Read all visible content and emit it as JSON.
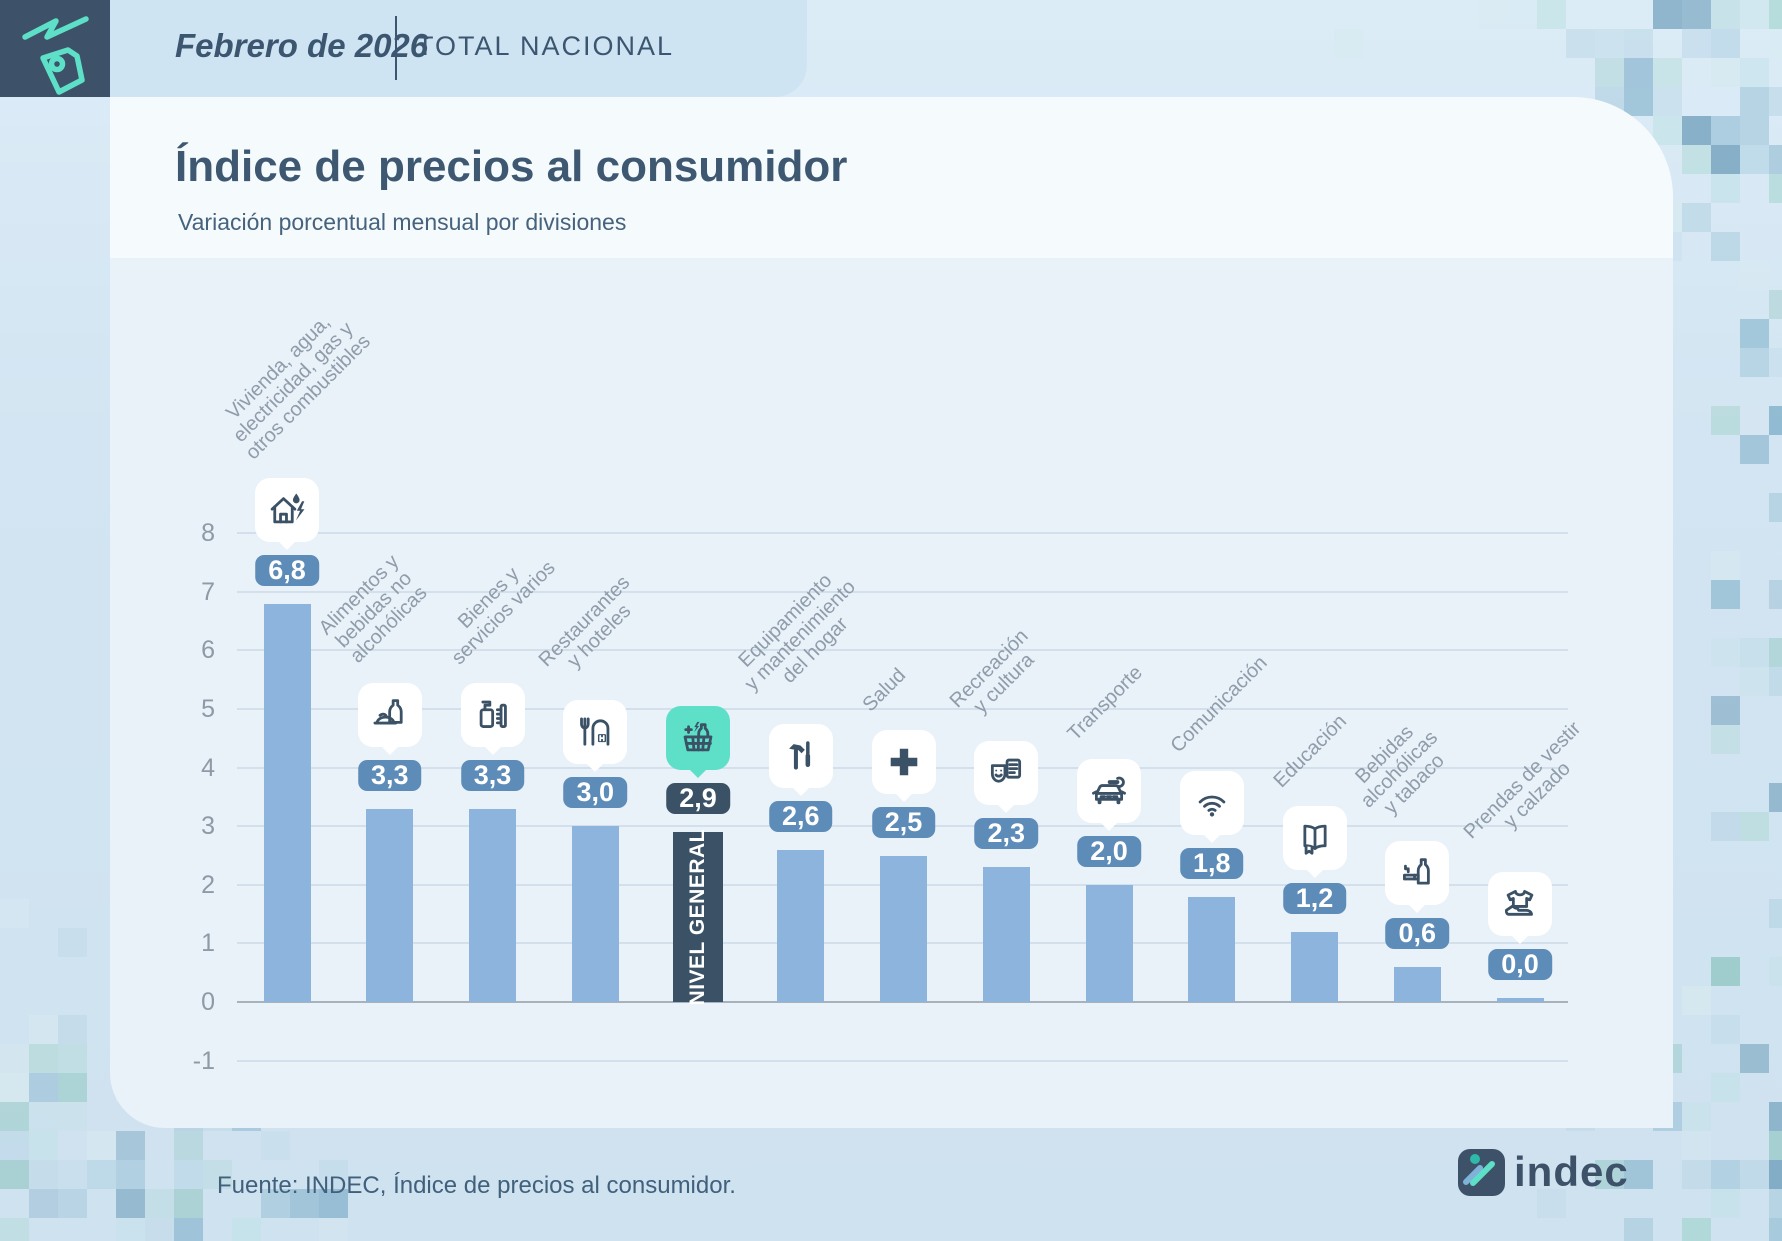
{
  "header": {
    "period": "Febrero de 2026",
    "scope": "TOTAL NACIONAL"
  },
  "title": "Índice de precios al consumidor",
  "subtitle": "Variación porcentual mensual por divisiones",
  "footer": {
    "source": "Fuente: INDEC, Índice de precios al consumidor.",
    "brand": "indec"
  },
  "colors": {
    "navy": "#3a5166",
    "accent_teal": "#5ee0c8",
    "bar_blue": "#8cb4dd",
    "badge_blue": "#5e8cb9",
    "band_blue": "#cfe4f3",
    "panel_blue": "#e9f1f9",
    "label_gray": "#8f9caa"
  },
  "chart_data": {
    "type": "bar",
    "title": "Índice de precios al consumidor",
    "subtitle": "Variación porcentual mensual por divisiones",
    "xlabel": "",
    "ylabel": "",
    "ylim": [
      -1,
      8
    ],
    "yticks": [
      8,
      7,
      6,
      5,
      4,
      3,
      2,
      1,
      0,
      -1
    ],
    "grid": true,
    "legend": "none",
    "highlight_category": "NIVEL GENERAL",
    "categories": [
      {
        "label": "Vivienda, agua,\nelectricidad, gas y\notros combustibles",
        "value": 6.8,
        "value_label": "6,8",
        "icon": "housing-energy-icon",
        "highlight": false
      },
      {
        "label": "Alimentos y\nbebidas no\nalcohólicas",
        "value": 3.3,
        "value_label": "3,3",
        "icon": "food-icon",
        "highlight": false
      },
      {
        "label": "Bienes y\nservicios varios",
        "value": 3.3,
        "value_label": "3,3",
        "icon": "goods-services-icon",
        "highlight": false
      },
      {
        "label": "Restaurantes\ny hoteles",
        "value": 3.0,
        "value_label": "3,0",
        "icon": "restaurant-hotel-icon",
        "highlight": false
      },
      {
        "label": "NIVEL GENERAL",
        "value": 2.9,
        "value_label": "2,9",
        "icon": "shopping-basket-icon",
        "highlight": true
      },
      {
        "label": "Equipamiento\ny mantenimiento\ndel hogar",
        "value": 2.6,
        "value_label": "2,6",
        "icon": "tools-icon",
        "highlight": false
      },
      {
        "label": "Salud",
        "value": 2.5,
        "value_label": "2,5",
        "icon": "health-cross-icon",
        "highlight": false
      },
      {
        "label": "Recreación\ny cultura",
        "value": 2.3,
        "value_label": "2,3",
        "icon": "culture-masks-icon",
        "highlight": false
      },
      {
        "label": "Transporte",
        "value": 2.0,
        "value_label": "2,0",
        "icon": "car-wrench-icon",
        "highlight": false
      },
      {
        "label": "Comunicación",
        "value": 1.8,
        "value_label": "1,8",
        "icon": "wifi-icon",
        "highlight": false
      },
      {
        "label": "Educación",
        "value": 1.2,
        "value_label": "1,2",
        "icon": "book-icon",
        "highlight": false
      },
      {
        "label": "Bebidas\nalcohólicas\ny tabaco",
        "value": 0.6,
        "value_label": "0,6",
        "icon": "drinks-tobacco-icon",
        "highlight": false
      },
      {
        "label": "Prendas de vestir\ny calzado",
        "value": 0.0,
        "value_label": "0,0",
        "icon": "clothing-icon",
        "highlight": false
      }
    ]
  }
}
